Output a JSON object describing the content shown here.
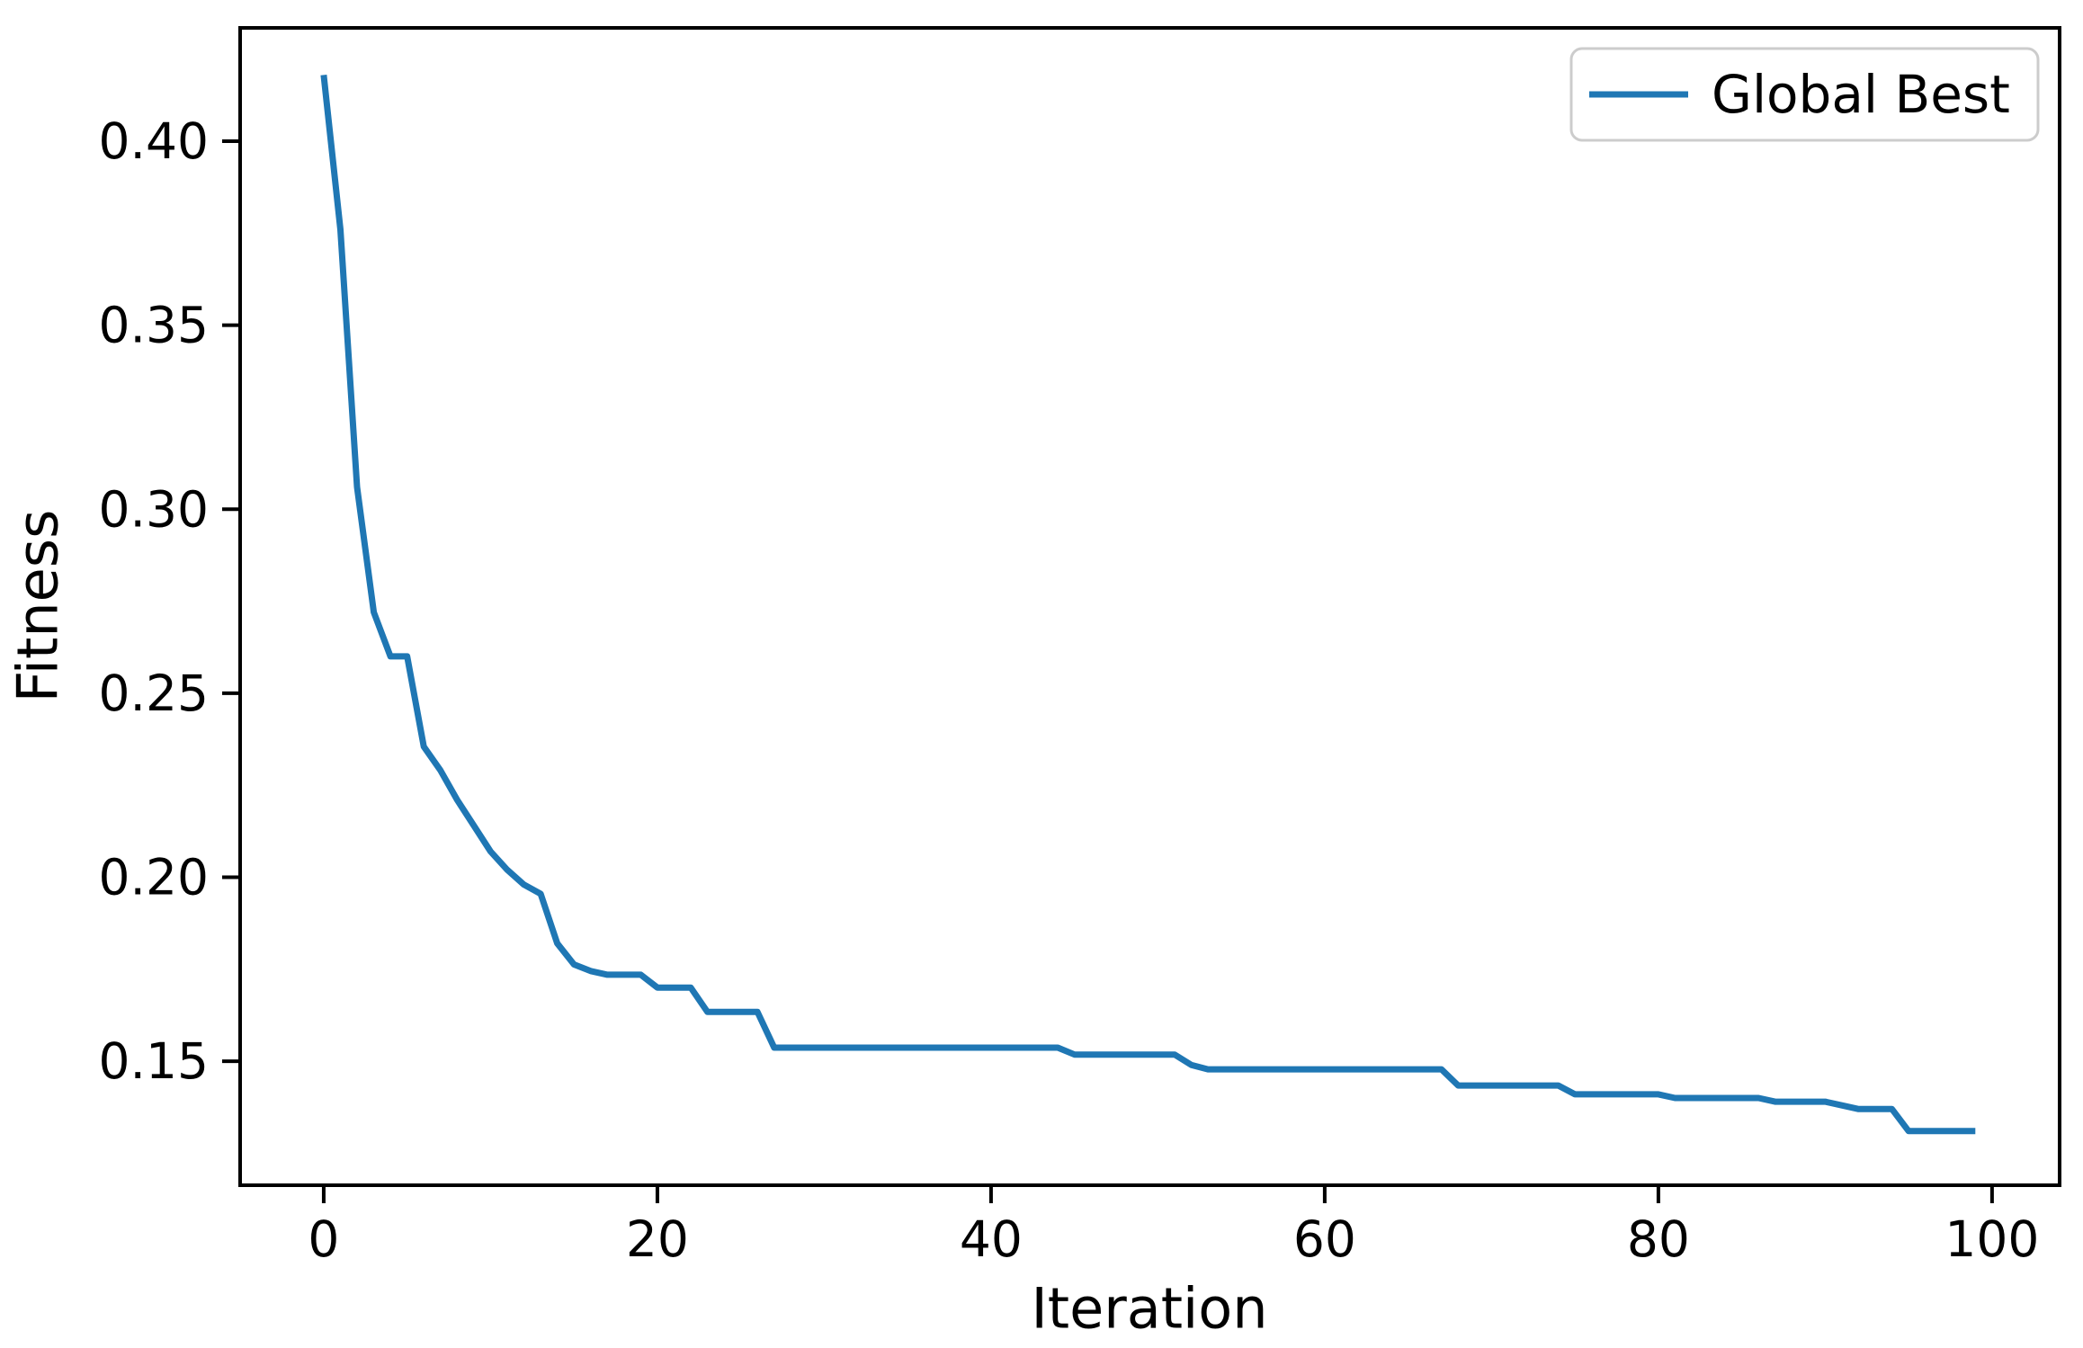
{
  "figure": {
    "background": "#ffffff",
    "text_color": "#000000",
    "spine_color": "#000000",
    "line_color": "#1f77b4",
    "x_axis": {
      "label": "Iteration",
      "tick_labels": [
        "0",
        "20",
        "40",
        "60",
        "80",
        "100"
      ],
      "tick_values": [
        0,
        20,
        40,
        60,
        80,
        100
      ]
    },
    "y_axis": {
      "label": "Fitness",
      "tick_labels": [
        "0.40",
        "0.35",
        "0.30",
        "0.25",
        "0.20",
        "0.15"
      ],
      "tick_values": [
        0.4,
        0.35,
        0.3,
        0.25,
        0.2,
        0.15
      ]
    },
    "legend": {
      "label": "Global Best",
      "border_color": "#cccccc",
      "background": "#ffffff",
      "position": "upper right"
    }
  },
  "chart_data": {
    "type": "line",
    "title": "",
    "xlabel": "Iteration",
    "ylabel": "Fitness",
    "xlim": [
      -5.01,
      104.05
    ],
    "ylim": [
      0.1163,
      0.4308
    ],
    "grid": false,
    "legend_position": "upper right",
    "x_min": 0,
    "x_step": 1,
    "series": [
      {
        "name": "Global Best",
        "color": "#1f77b4",
        "values": [
          0.418,
          0.376,
          0.306,
          0.272,
          0.26,
          0.26,
          0.2355,
          0.229,
          0.221,
          0.214,
          0.207,
          0.202,
          0.198,
          0.1955,
          0.182,
          0.1763,
          0.1745,
          0.1735,
          0.1735,
          0.1735,
          0.17,
          0.17,
          0.17,
          0.1634,
          0.1634,
          0.1634,
          0.1634,
          0.1537,
          0.1537,
          0.1537,
          0.1537,
          0.1537,
          0.1537,
          0.1537,
          0.1537,
          0.1537,
          0.1537,
          0.1537,
          0.1537,
          0.1537,
          0.1537,
          0.1537,
          0.1537,
          0.1537,
          0.1537,
          0.1518,
          0.1518,
          0.1518,
          0.1518,
          0.1518,
          0.1518,
          0.1518,
          0.149,
          0.1478,
          0.1478,
          0.1478,
          0.1478,
          0.1478,
          0.1478,
          0.1478,
          0.1478,
          0.1478,
          0.1478,
          0.1478,
          0.1478,
          0.1478,
          0.1478,
          0.1478,
          0.1434,
          0.1434,
          0.1434,
          0.1434,
          0.1434,
          0.1434,
          0.1434,
          0.141,
          0.141,
          0.141,
          0.141,
          0.141,
          0.141,
          0.14,
          0.14,
          0.14,
          0.14,
          0.14,
          0.14,
          0.139,
          0.139,
          0.139,
          0.139,
          0.138,
          0.137,
          0.137,
          0.137,
          0.131,
          0.131,
          0.131,
          0.131,
          0.131
        ]
      }
    ]
  }
}
